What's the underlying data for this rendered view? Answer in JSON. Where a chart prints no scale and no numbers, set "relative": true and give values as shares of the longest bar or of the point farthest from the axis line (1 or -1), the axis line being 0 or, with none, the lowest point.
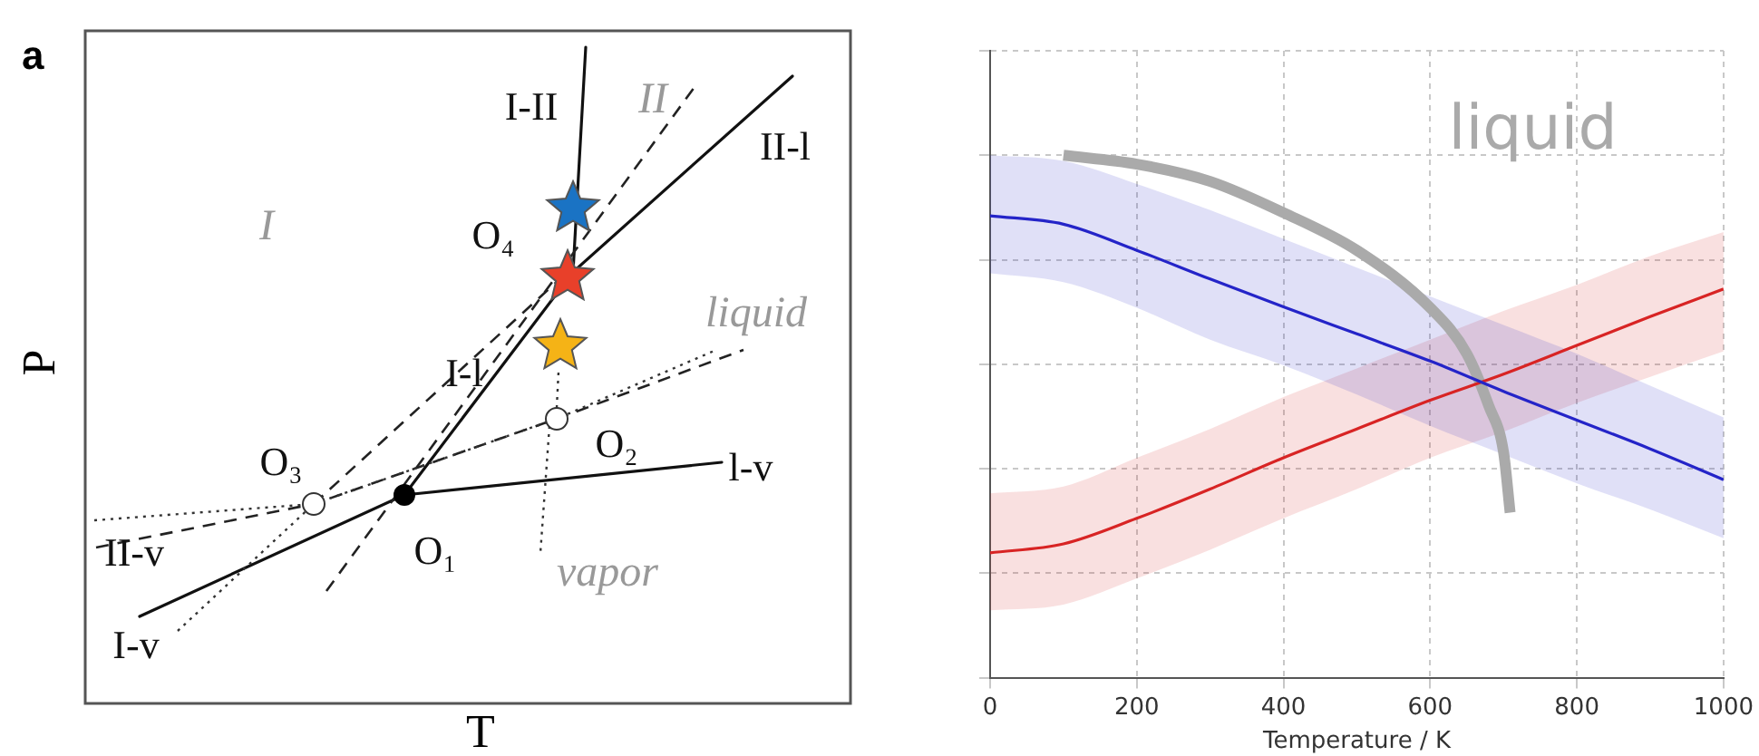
{
  "chart_data": [
    {
      "type": "other",
      "title": "a",
      "xlabel": "T",
      "ylabel": "P",
      "annotations": [
        "I-II",
        "II",
        "II-l",
        "I",
        "O₄",
        "liquid",
        "I-l",
        "O₃",
        "O₂",
        "l-v",
        "II-v",
        "O₁",
        "vapor",
        "I-v"
      ]
    },
    {
      "type": "line",
      "xlabel": "Temperature / K",
      "xlim": [
        0,
        1000
      ],
      "xticks": [
        0,
        200,
        400,
        600,
        800,
        1000
      ],
      "relative": true,
      "grid": true,
      "legend": false,
      "tick_labels": "x",
      "marker": "none",
      "line_style": "solid",
      "series": [
        {
          "color": "#2424c8",
          "x": [
            0,
            100,
            200,
            300,
            400,
            500,
            600,
            700,
            800,
            900,
            1000
          ],
          "values": [
            0.884,
            0.868,
            0.818,
            0.763,
            0.71,
            0.658,
            0.606,
            0.548,
            0.493,
            0.438,
            0.379
          ],
          "lower": [
            0.774,
            0.757,
            0.708,
            0.647,
            0.598,
            0.542,
            0.482,
            0.427,
            0.372,
            0.322,
            0.267
          ],
          "upper": [
            1.0,
            0.989,
            0.945,
            0.895,
            0.84,
            0.785,
            0.73,
            0.675,
            0.62,
            0.559,
            0.498
          ]
        },
        {
          "color": "#d82424",
          "x": [
            0,
            100,
            200,
            300,
            400,
            500,
            600,
            700,
            800,
            900,
            1000
          ],
          "values": [
            0.239,
            0.256,
            0.305,
            0.361,
            0.421,
            0.476,
            0.531,
            0.581,
            0.636,
            0.691,
            0.744
          ],
          "lower": [
            0.129,
            0.14,
            0.19,
            0.245,
            0.305,
            0.361,
            0.421,
            0.471,
            0.526,
            0.576,
            0.625
          ],
          "upper": [
            0.353,
            0.366,
            0.421,
            0.476,
            0.537,
            0.592,
            0.647,
            0.702,
            0.752,
            0.807,
            0.853
          ]
        },
        {
          "color": "#aaaaaa",
          "x": [
            100,
            200,
            300,
            400,
            500,
            600,
            650,
            680,
            700,
            709
          ],
          "values": [
            1.0,
            0.983,
            0.95,
            0.89,
            0.818,
            0.708,
            0.62,
            0.52,
            0.432,
            0.316
          ]
        }
      ],
      "annotations": [
        "liquid"
      ]
    }
  ]
}
